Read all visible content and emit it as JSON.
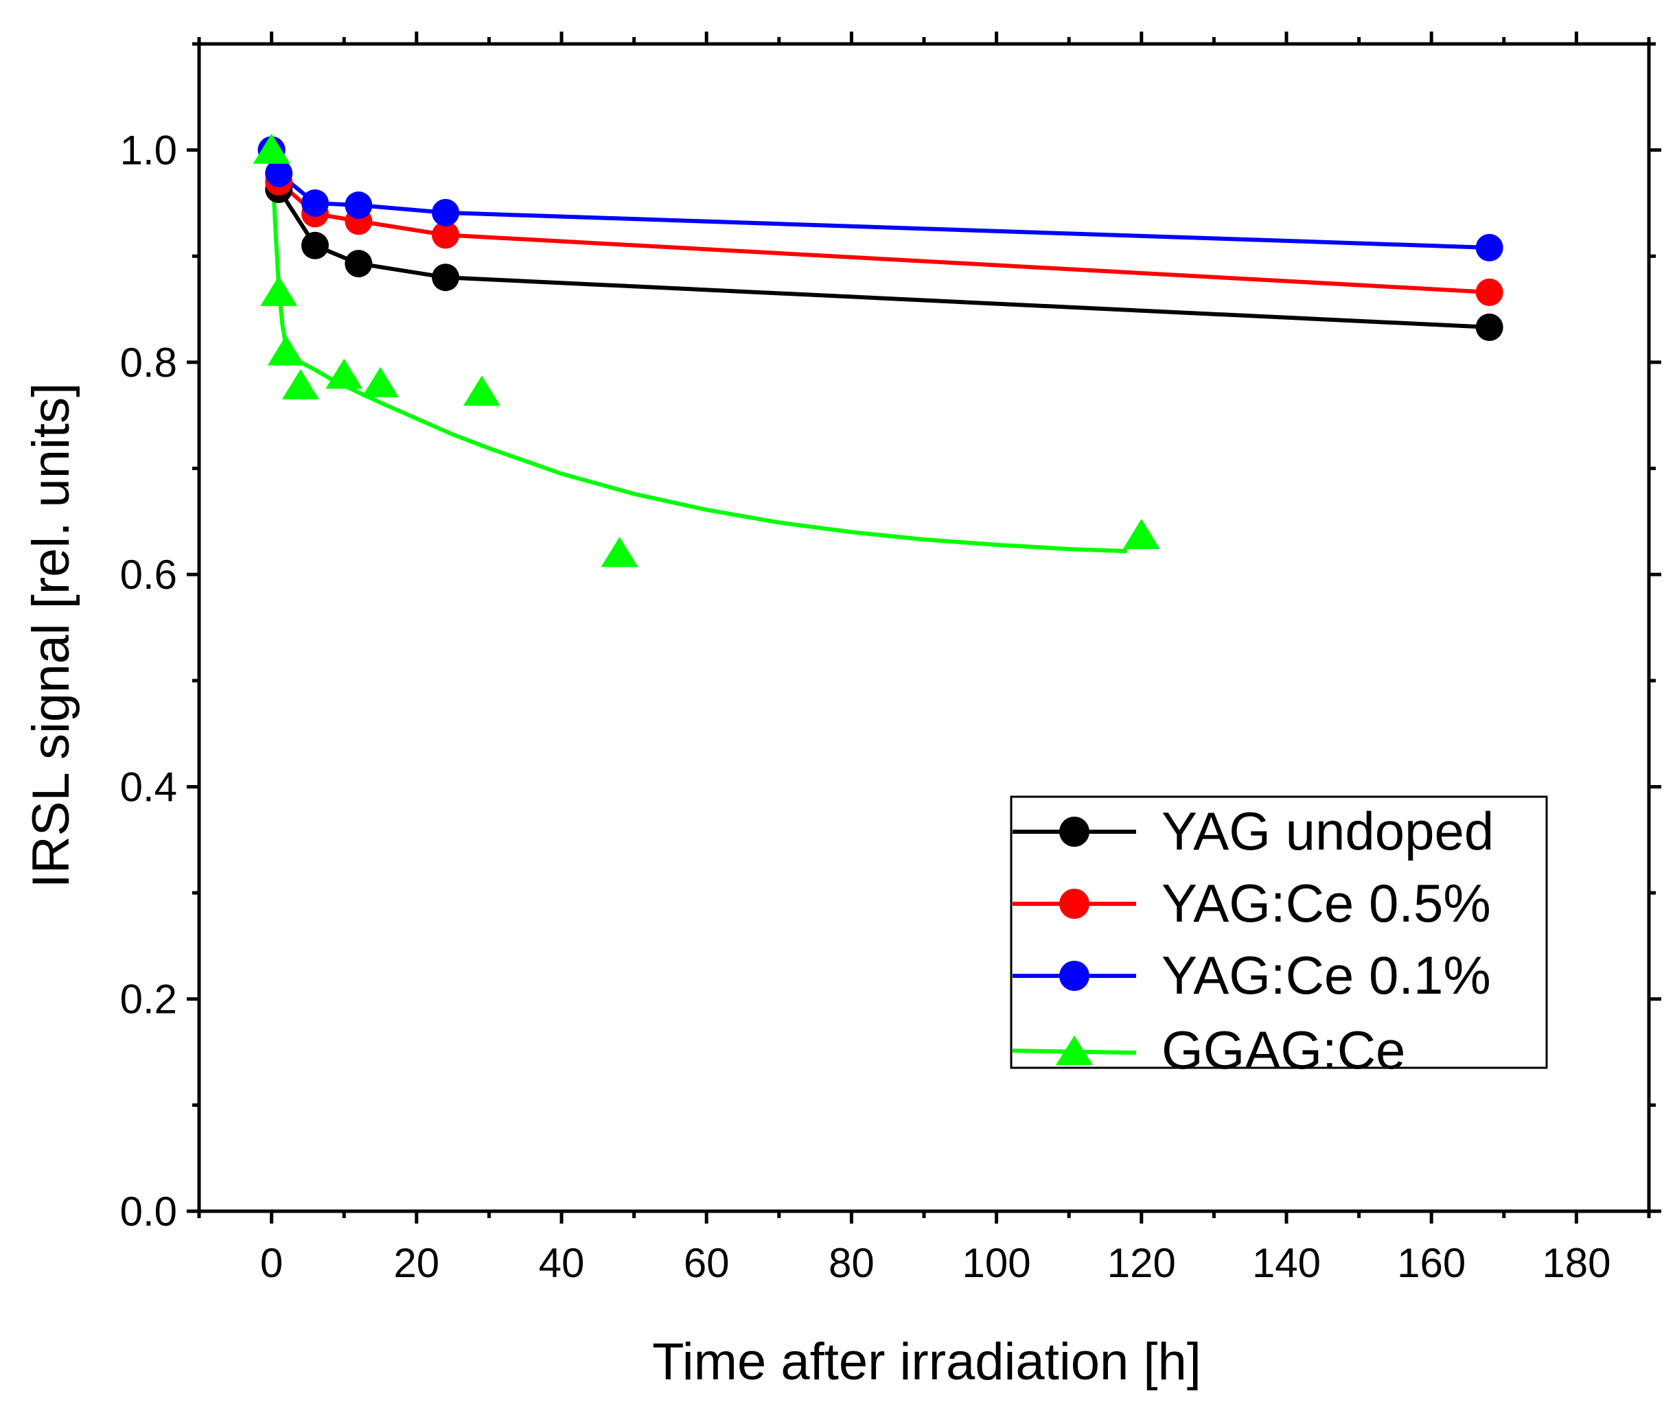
{
  "chart_data": {
    "type": "scatter",
    "title": "",
    "xlabel": "Time after irradiation [h]",
    "ylabel": "IRSL signal [rel. units]",
    "xlim": [
      -10,
      190
    ],
    "ylim": [
      0.0,
      1.1
    ],
    "xticks": [
      0,
      20,
      40,
      60,
      80,
      100,
      120,
      140,
      160,
      180
    ],
    "yticks": [
      0.0,
      0.2,
      0.4,
      0.6,
      0.8,
      1.0
    ],
    "xtick_labels": [
      "0",
      "20",
      "40",
      "60",
      "80",
      "100",
      "120",
      "140",
      "160",
      "180"
    ],
    "ytick_labels": [
      "0.0",
      "0.2",
      "0.4",
      "0.6",
      "0.8",
      "1.0"
    ],
    "grid": false,
    "legend_position": "bottom-right",
    "series": [
      {
        "name": "YAG undoped",
        "color": "#000000",
        "marker": "circle",
        "x": [
          0,
          1,
          6,
          12,
          24,
          168
        ],
        "y": [
          1.0,
          0.963,
          0.91,
          0.893,
          0.88,
          0.833
        ],
        "line": {
          "x": [
            0,
            1,
            6,
            12,
            24,
            168
          ],
          "y": [
            1.0,
            0.963,
            0.91,
            0.893,
            0.88,
            0.833
          ]
        }
      },
      {
        "name": "YAG:Ce 0.5%",
        "color": "#ff0000",
        "marker": "circle",
        "x": [
          0,
          1,
          6,
          12,
          24,
          168
        ],
        "y": [
          1.0,
          0.97,
          0.94,
          0.933,
          0.92,
          0.866
        ],
        "line": {
          "x": [
            0,
            1,
            6,
            12,
            24,
            168
          ],
          "y": [
            1.0,
            0.97,
            0.94,
            0.933,
            0.92,
            0.866
          ]
        }
      },
      {
        "name": "YAG:Ce 0.1%",
        "color": "#0000ff",
        "marker": "circle",
        "x": [
          0,
          1,
          6,
          12,
          24,
          168
        ],
        "y": [
          1.0,
          0.978,
          0.95,
          0.948,
          0.941,
          0.908
        ],
        "line": {
          "x": [
            0,
            1,
            6,
            12,
            24,
            168
          ],
          "y": [
            1.0,
            0.978,
            0.95,
            0.948,
            0.941,
            0.908
          ]
        }
      },
      {
        "name": "GGAG:Ce",
        "color": "#00ff00",
        "marker": "triangle",
        "x": [
          0,
          1,
          2,
          4,
          10,
          15,
          29,
          48,
          120
        ],
        "y": [
          1.0,
          0.866,
          0.81,
          0.778,
          0.788,
          0.78,
          0.772,
          0.62,
          0.637
        ],
        "line": {
          "x": [
            0,
            0.5,
            1,
            1.5,
            2,
            3,
            4,
            6,
            8,
            10,
            15,
            20,
            25,
            30,
            40,
            50,
            60,
            70,
            80,
            90,
            100,
            110,
            118
          ],
          "y": [
            1.0,
            0.93,
            0.87,
            0.835,
            0.815,
            0.806,
            0.8,
            0.793,
            0.785,
            0.778,
            0.762,
            0.747,
            0.732,
            0.719,
            0.695,
            0.676,
            0.661,
            0.649,
            0.64,
            0.633,
            0.628,
            0.624,
            0.622
          ]
        }
      }
    ]
  }
}
